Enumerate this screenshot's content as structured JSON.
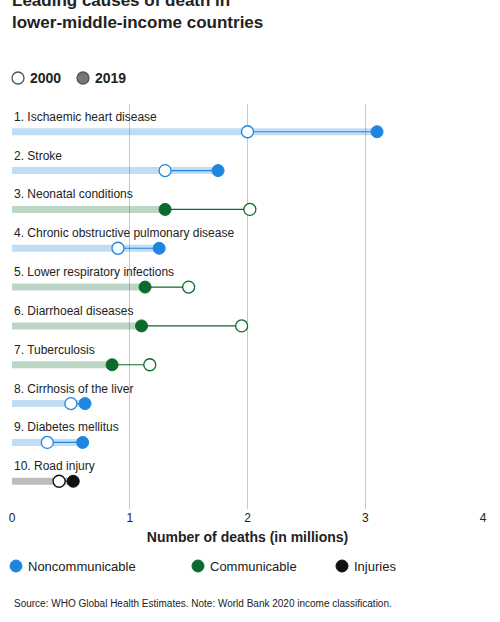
{
  "chart_data": {
    "type": "dumbbell",
    "title": "Leading causes of death in\nlower-middle-income countries",
    "orientation": "horizontal",
    "categories": [
      "1. Ischaemic heart disease",
      "2. Stroke",
      "3. Neonatal conditions",
      "4. Chronic obstructive pulmonary disease",
      "5. Lower respiratory infections",
      "6. Diarrhoeal diseases",
      "7. Tuberculosis",
      "8. Cirrhosis of the liver",
      "9. Diabetes mellitus",
      "10. Road injury"
    ],
    "series": [
      {
        "name": "2000",
        "marker": "open",
        "values": [
          2.0,
          1.3,
          2.02,
          0.9,
          1.5,
          1.95,
          1.17,
          0.5,
          0.3,
          0.4
        ]
      },
      {
        "name": "2019",
        "marker": "filled",
        "values": [
          3.1,
          1.75,
          1.3,
          1.25,
          1.13,
          1.1,
          0.85,
          0.62,
          0.6,
          0.52
        ]
      }
    ],
    "groups": [
      "Noncommunicable",
      "Noncommunicable",
      "Communicable",
      "Noncommunicable",
      "Communicable",
      "Communicable",
      "Communicable",
      "Noncommunicable",
      "Noncommunicable",
      "Injuries"
    ],
    "group_colors": [
      {
        "name": "Noncommunicable",
        "color": "#1f86e0"
      },
      {
        "name": "Communicable",
        "color": "#0b6b2c"
      },
      {
        "name": "Injuries",
        "color": "#111111"
      }
    ],
    "xlabel": "Number of deaths (in millions)",
    "xlim": [
      0,
      4
    ],
    "xticks": [
      0,
      1,
      2,
      3,
      4
    ],
    "grid": true,
    "tick_labels": "x",
    "source": "Source: WHO Global Health Estimates. Note: World Bank 2020 income classification."
  }
}
